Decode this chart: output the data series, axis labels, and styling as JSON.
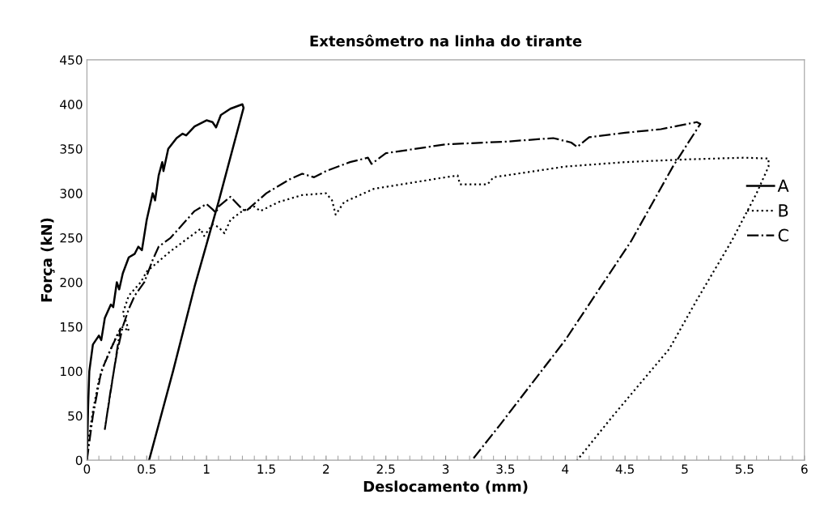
{
  "chart_data": {
    "type": "line",
    "title": "Extensômetro na linha do tirante",
    "xlabel": "Deslocamento (mm)",
    "ylabel": "Força (kN)",
    "xlim": [
      0,
      6
    ],
    "xticks": [
      0,
      0.5,
      1,
      1.5,
      2,
      2.5,
      3,
      3.5,
      4,
      4.5,
      5,
      5.5,
      6
    ],
    "ylim": [
      0,
      450
    ],
    "yticks": [
      0,
      50,
      100,
      150,
      200,
      250,
      300,
      350,
      400,
      450
    ],
    "grid": false,
    "legend": "right",
    "marker": "none",
    "series": [
      {
        "name": "A",
        "color": "#000000",
        "line_style": "solid",
        "x": [
          0,
          0.01,
          0.02,
          0.05,
          0.1,
          0.12,
          0.15,
          0.2,
          0.22,
          0.25,
          0.27,
          0.3,
          0.35,
          0.4,
          0.43,
          0.46,
          0.5,
          0.55,
          0.57,
          0.6,
          0.63,
          0.64,
          0.68,
          0.75,
          0.8,
          0.83,
          0.9,
          1.0,
          1.05,
          1.08,
          1.12,
          1.2,
          1.3,
          1.31,
          1.1,
          0.9,
          0.72,
          0.52
        ],
        "values": [
          0,
          60,
          100,
          130,
          140,
          135,
          160,
          175,
          172,
          200,
          192,
          210,
          228,
          232,
          240,
          236,
          270,
          300,
          292,
          320,
          335,
          325,
          350,
          362,
          367,
          365,
          375,
          382,
          380,
          374,
          388,
          395,
          400,
          396,
          290,
          195,
          100,
          0
        ]
      },
      {
        "name": "B",
        "color": "#000000",
        "line_style": "dotted",
        "x": [
          0,
          0.01,
          0.05,
          0.1,
          0.15,
          0.2,
          0.25,
          0.3,
          0.35,
          0.33,
          0.3,
          0.35,
          0.45,
          0.5,
          0.7,
          0.95,
          0.98,
          1.05,
          1.1,
          1.15,
          1.2,
          1.3,
          1.4,
          1.45,
          1.6,
          1.8,
          2.0,
          2.05,
          2.08,
          2.15,
          2.4,
          3.0,
          3.1,
          3.12,
          3.35,
          3.4,
          4.0,
          4.5,
          5.0,
          5.5,
          5.7,
          5.7,
          5.6,
          5.39,
          5.1,
          4.87,
          4.65,
          4.4,
          4.1
        ],
        "values": [
          0,
          20,
          55,
          90,
          110,
          125,
          140,
          150,
          145,
          155,
          165,
          185,
          200,
          212,
          235,
          260,
          252,
          265,
          262,
          255,
          270,
          280,
          285,
          280,
          290,
          298,
          300,
          292,
          276,
          290,
          305,
          318,
          320,
          310,
          310,
          318,
          330,
          335,
          338,
          340,
          339,
          330,
          300,
          246,
          180,
          125,
          90,
          50,
          0
        ]
      },
      {
        "name": "C",
        "color": "#000000",
        "line_style": "dashdot",
        "x": [
          0,
          0.05,
          0.12,
          0.2,
          0.28,
          0.15,
          0.2,
          0.25,
          0.3,
          0.35,
          0.4,
          0.48,
          0.55,
          0.6,
          0.7,
          0.8,
          0.9,
          1.0,
          1.05,
          1.08,
          1.1,
          1.2,
          1.3,
          1.33,
          1.5,
          1.7,
          1.8,
          1.9,
          2.0,
          2.2,
          2.35,
          2.38,
          2.5,
          3.0,
          3.5,
          3.9,
          4.05,
          4.1,
          4.2,
          4.5,
          4.8,
          5.1,
          5.13,
          4.9,
          4.55,
          4.0,
          3.45,
          3.22
        ],
        "values": [
          0,
          50,
          100,
          125,
          148,
          35,
          80,
          120,
          150,
          170,
          185,
          200,
          225,
          240,
          250,
          265,
          280,
          288,
          282,
          278,
          285,
          296,
          282,
          280,
          300,
          316,
          322,
          318,
          325,
          335,
          340,
          333,
          345,
          355,
          358,
          362,
          357,
          352,
          363,
          368,
          372,
          380,
          378,
          330,
          246,
          135,
          39,
          0
        ]
      }
    ]
  }
}
